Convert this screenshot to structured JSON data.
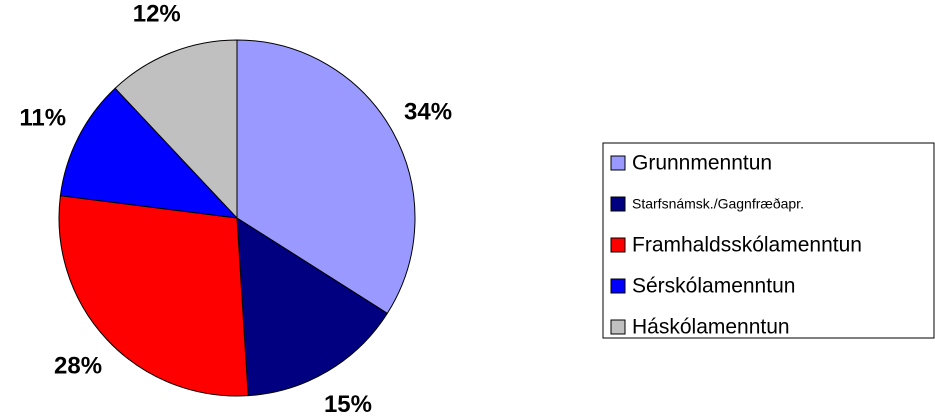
{
  "chart_data": {
    "type": "pie",
    "categories": [
      "Grunnmenntun",
      "Starfsnámsk./Gagnfræðapr.",
      "Framhaldsskólamenntun",
      "Sérskólamenntun",
      "Háskólamenntun"
    ],
    "values": [
      34,
      15,
      28,
      11,
      12
    ],
    "value_labels": [
      "34%",
      "15%",
      "28%",
      "11%",
      "12%"
    ],
    "colors": [
      "#9999ff",
      "#000080",
      "#ff0000",
      "#0000ff",
      "#c0c0c0"
    ],
    "legend": "right"
  }
}
